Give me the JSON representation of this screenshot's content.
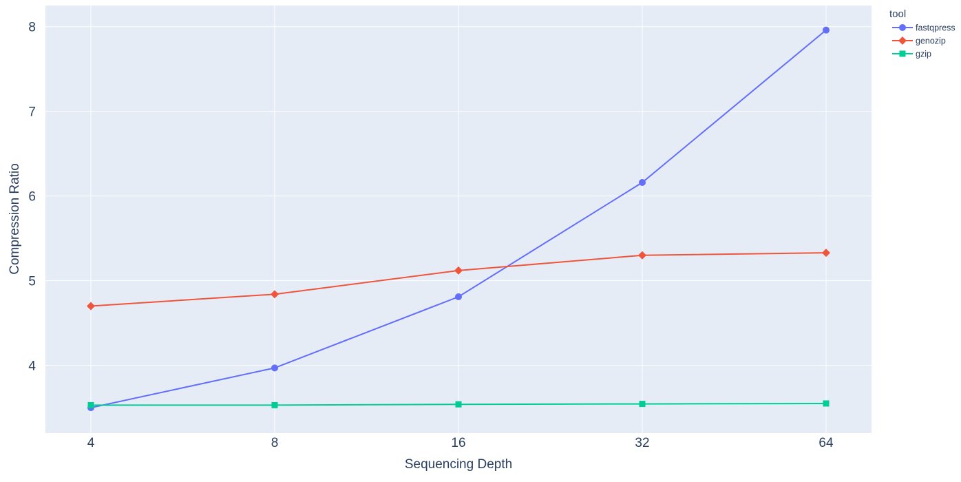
{
  "chart_data": {
    "type": "line",
    "x": [
      4,
      8,
      16,
      32,
      64
    ],
    "x_ticks": [
      "4",
      "8",
      "16",
      "32",
      "64"
    ],
    "x_scale": "log2",
    "xlabel": "Sequencing Depth",
    "ylabel": "Compression Ratio",
    "y_ticks": [
      "4",
      "5",
      "6",
      "7",
      "8"
    ],
    "ylim": [
      3.2,
      8.25
    ],
    "grid": true,
    "legend": {
      "title": "tool",
      "position": "top-right"
    },
    "series": [
      {
        "name": "fastqpress",
        "values": [
          3.5,
          3.97,
          4.81,
          6.16,
          7.96
        ],
        "color": "#636efa",
        "marker": "circle"
      },
      {
        "name": "genozip",
        "values": [
          4.7,
          4.84,
          5.12,
          5.3,
          5.33
        ],
        "color": "#ef553b",
        "marker": "diamond"
      },
      {
        "name": "gzip",
        "values": [
          3.53,
          3.53,
          3.54,
          3.545,
          3.55
        ],
        "color": "#00cc96",
        "marker": "square"
      }
    ],
    "plot_background": "#e5ecf6",
    "grid_color": "#ffffff"
  }
}
